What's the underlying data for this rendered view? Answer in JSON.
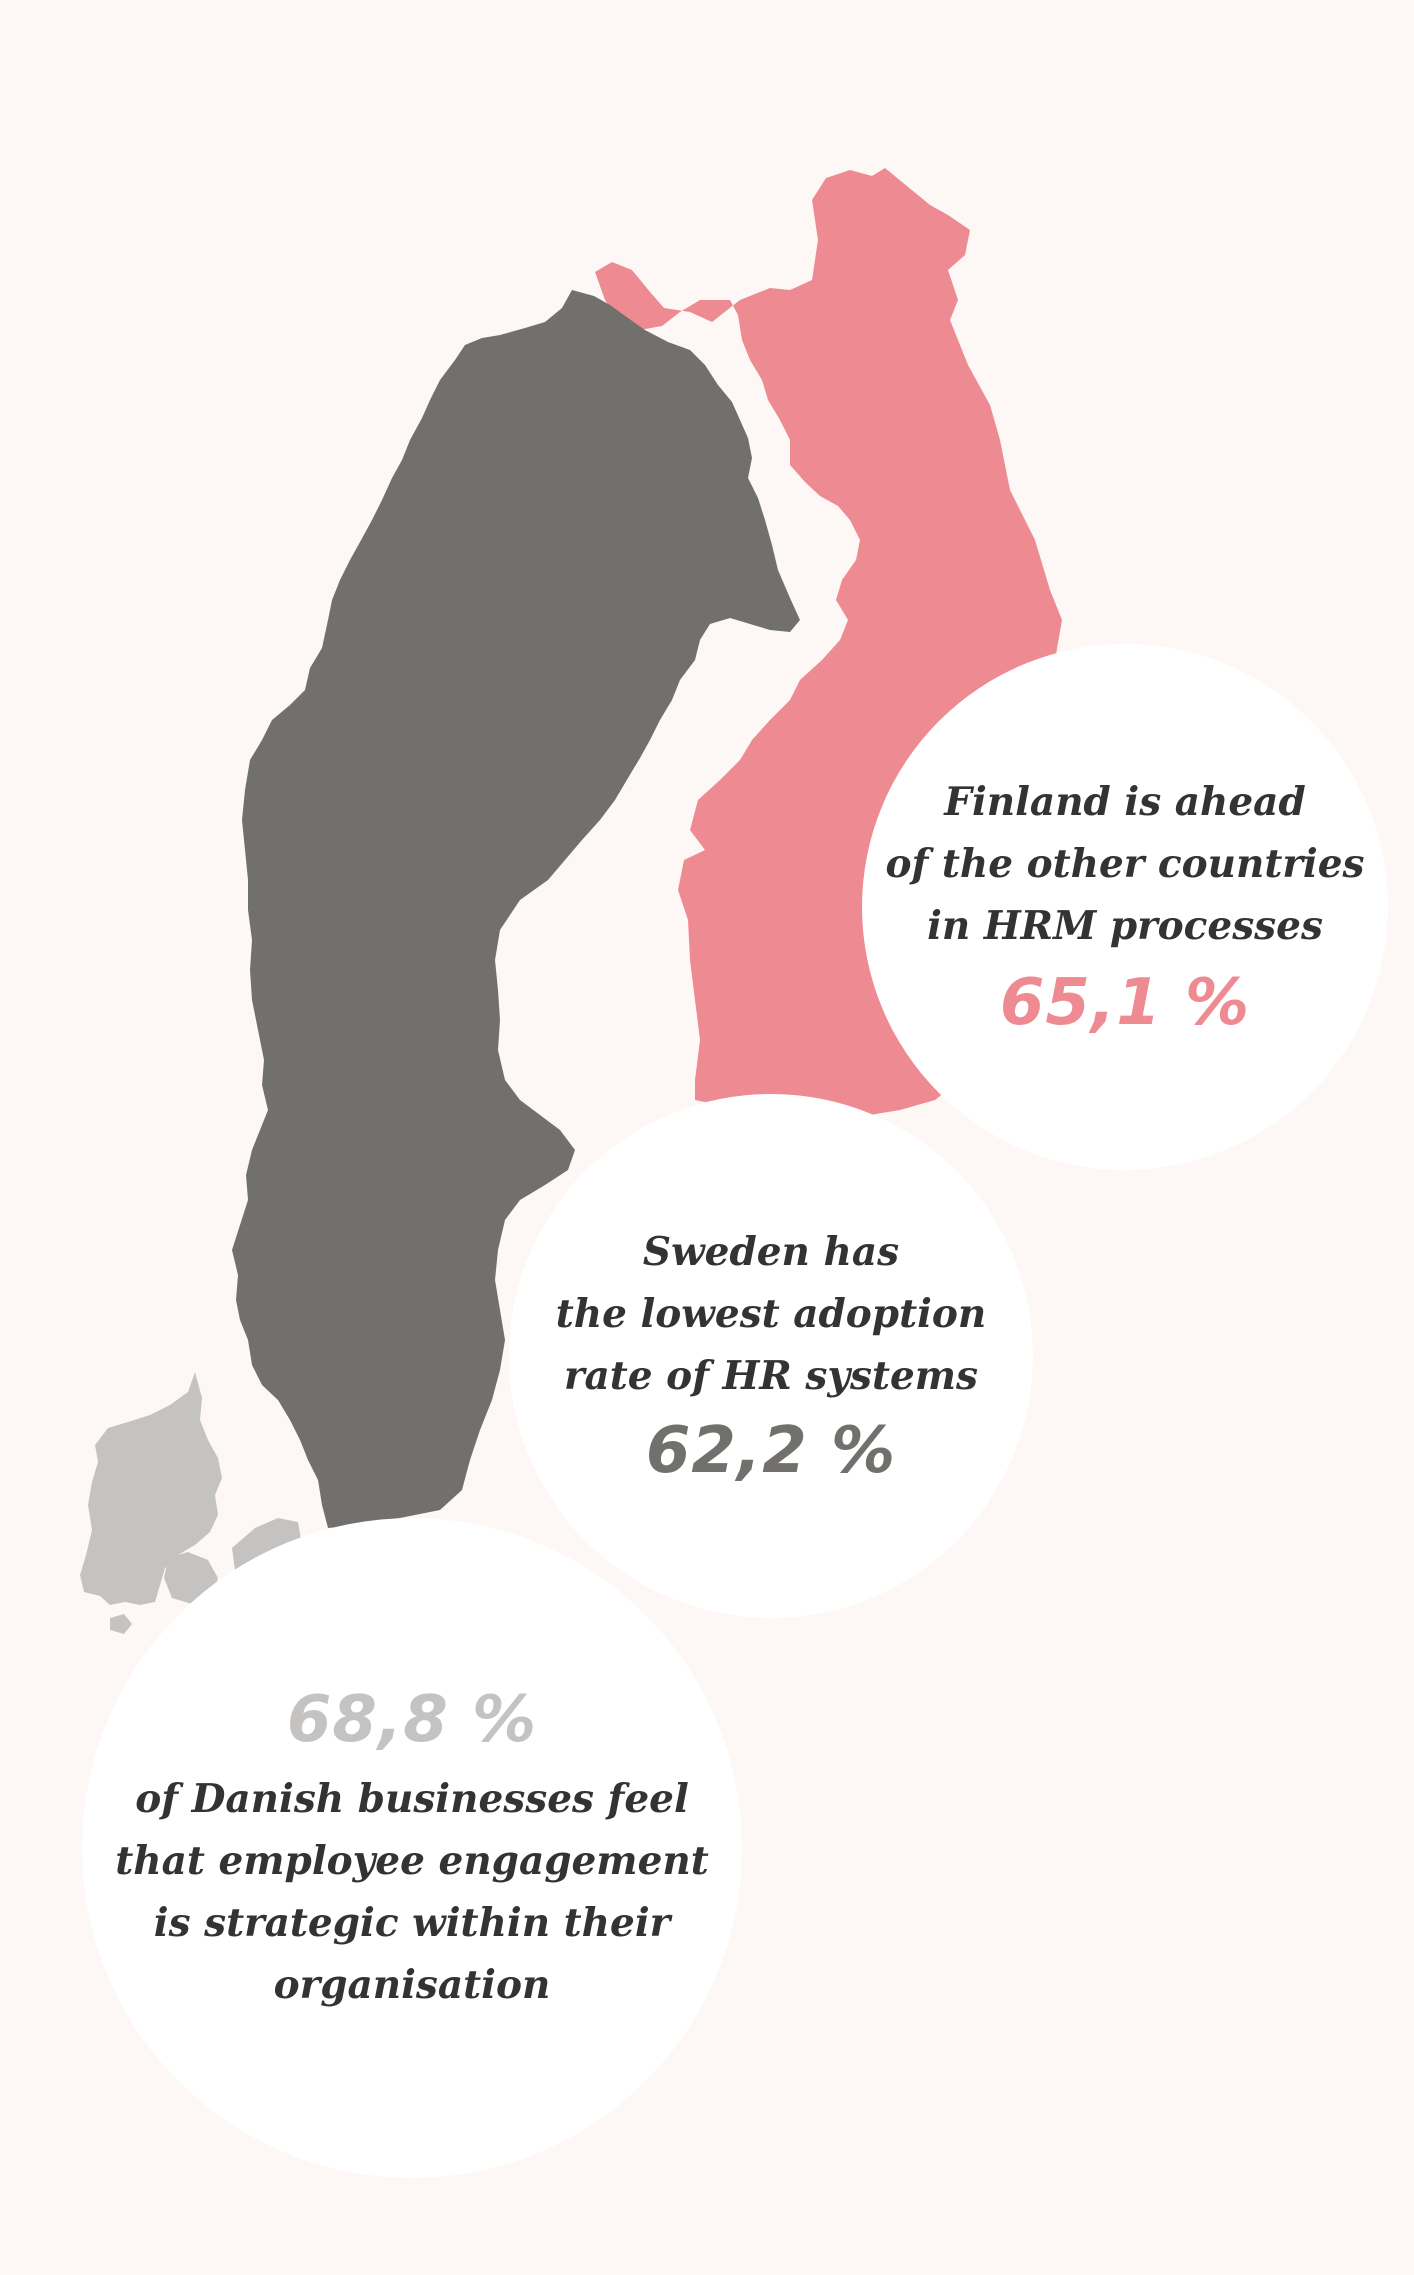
{
  "colors": {
    "background": "#fdf8f6",
    "finland": "#ee8a91",
    "sweden": "#72706d",
    "denmark": "#c5c3c1",
    "bubble": "#ffffff",
    "text": "#333333"
  },
  "finland": {
    "lines": [
      "Finland is ahead",
      "of the other countries",
      "in HRM processes"
    ],
    "stat": "65,1 %"
  },
  "sweden": {
    "lines": [
      "Sweden has",
      "the lowest adoption",
      "rate of HR systems"
    ],
    "stat": "62,2 %"
  },
  "denmark": {
    "stat": "68,8 %",
    "lines": [
      "of Danish businesses feel",
      "that employee engagement",
      "is strategic within their",
      "organisation"
    ]
  }
}
